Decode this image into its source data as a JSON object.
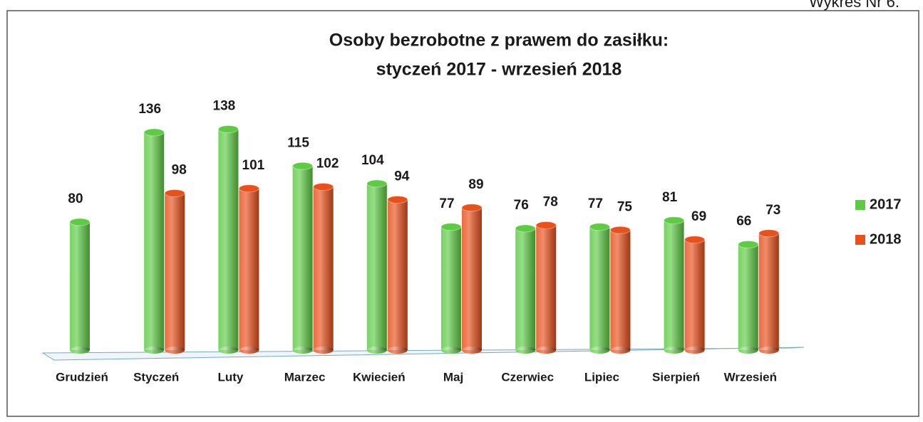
{
  "header_note": "Wykres Nr 6.",
  "chart_data": {
    "type": "bar",
    "title": [
      "Osoby bezrobotne z prawem do zasiłku:",
      "styczeń 2017 - wrzesień 2018"
    ],
    "categories": [
      "Grudzień",
      "Styczeń",
      "Luty",
      "Marzec",
      "Kwiecień",
      "Maj",
      "Czerwiec",
      "Lipiec",
      "Sierpień",
      "Wrzesień"
    ],
    "series": [
      {
        "name": "2017",
        "color": "#5ecb45",
        "values": [
          80,
          136,
          138,
          115,
          104,
          77,
          76,
          77,
          81,
          66
        ]
      },
      {
        "name": "2018",
        "color": "#e8501c",
        "values": [
          null,
          98,
          101,
          102,
          94,
          89,
          78,
          75,
          69,
          73
        ]
      }
    ],
    "ylim": [
      0,
      150
    ],
    "legend": "right"
  }
}
